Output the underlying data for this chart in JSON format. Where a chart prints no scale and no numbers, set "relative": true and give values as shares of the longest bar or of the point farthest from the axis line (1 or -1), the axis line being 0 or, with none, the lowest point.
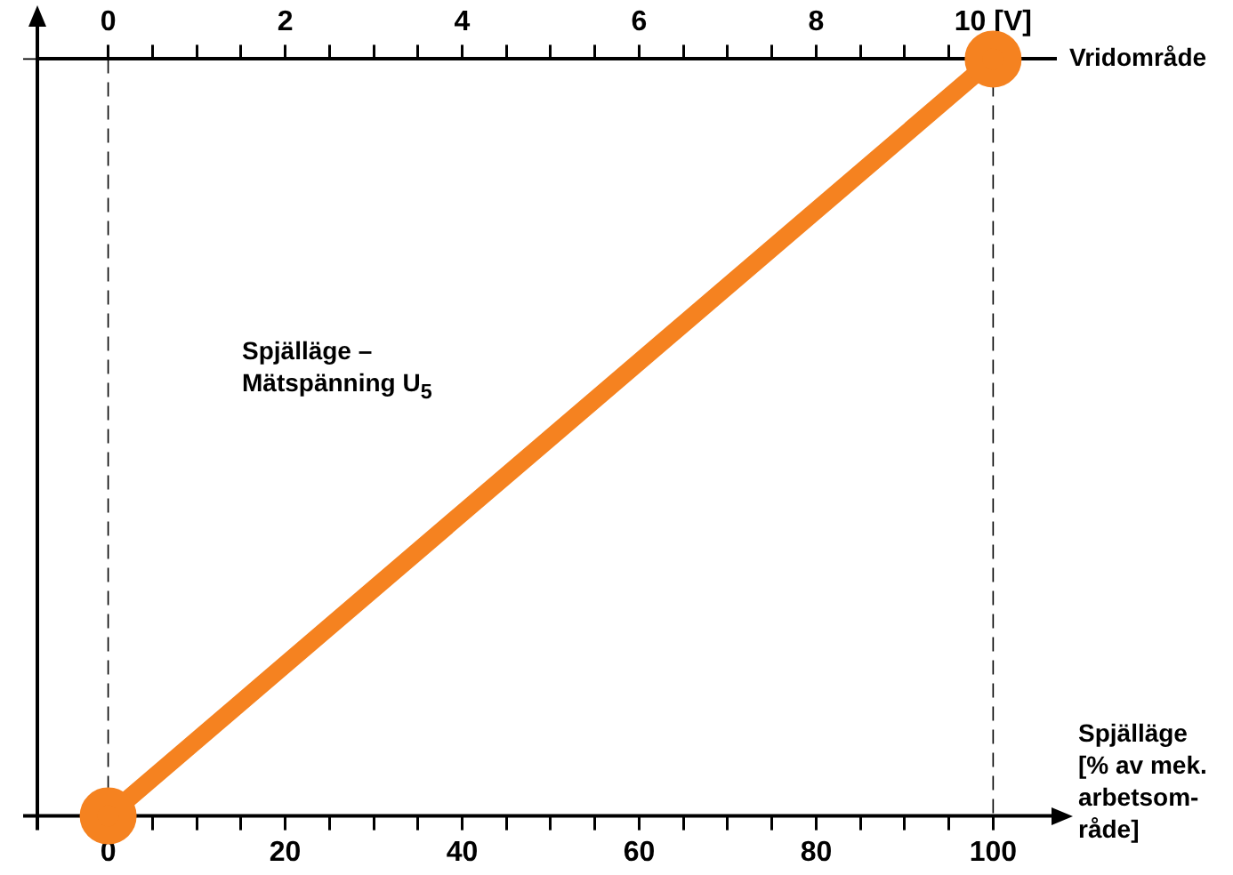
{
  "chart_data": {
    "type": "line",
    "relative": true,
    "x": [
      0,
      100
    ],
    "series": [
      {
        "color": "#f58220",
        "values": [
          0,
          1
        ]
      }
    ],
    "xlim": [
      -8,
      107
    ],
    "xticks": [
      0,
      {
        "value": 5,
        "label": null
      },
      {
        "value": 10,
        "label": null
      },
      {
        "value": 15,
        "label": null
      },
      20,
      {
        "value": 25,
        "label": null
      },
      {
        "value": 30,
        "label": null
      },
      {
        "value": 35,
        "label": null
      },
      40,
      {
        "value": 45,
        "label": null
      },
      {
        "value": 50,
        "label": null
      },
      {
        "value": 55,
        "label": null
      },
      60,
      {
        "value": 65,
        "label": null
      },
      {
        "value": 70,
        "label": null
      },
      {
        "value": 75,
        "label": null
      },
      80,
      {
        "value": 85,
        "label": null
      },
      {
        "value": 90,
        "label": null
      },
      {
        "value": 95,
        "label": null
      },
      100
    ],
    "x2lim": [
      -0.8,
      10.7
    ],
    "x2ticks": [
      0,
      {
        "value": 0.5,
        "label": null
      },
      {
        "value": 1,
        "label": null
      },
      {
        "value": 1.5,
        "label": null
      },
      2,
      {
        "value": 2.5,
        "label": null
      },
      {
        "value": 3,
        "label": null
      },
      {
        "value": 3.5,
        "label": null
      },
      4,
      {
        "value": 4.5,
        "label": null
      },
      {
        "value": 5,
        "label": null
      },
      {
        "value": 5.5,
        "label": null
      },
      6,
      {
        "value": 6.5,
        "label": null
      },
      {
        "value": 7,
        "label": null
      },
      {
        "value": 7.5,
        "label": null
      },
      8,
      {
        "value": 8.5,
        "label": null
      },
      {
        "value": 9,
        "label": null
      },
      {
        "value": 9.5,
        "label": null
      },
      {
        "value": 10,
        "label": "10 [V]"
      }
    ],
    "xlabel": "Spjälläge\n[% av mek.\narbetsom-\nråde]",
    "annotations": [
      "Spjälläge –\nMätspänning U$_{5}$"
    ],
    "ref_lines": [
      {
        "axis": "x",
        "value": 0,
        "line_style": "dashed"
      },
      {
        "axis": "x",
        "value": 100,
        "line_style": "dashed"
      },
      {
        "axis": "y",
        "value": 1,
        "label": "Vridområde",
        "line_style": "solid"
      }
    ],
    "marker": "circle",
    "line_style": "solid",
    "legend": false
  }
}
